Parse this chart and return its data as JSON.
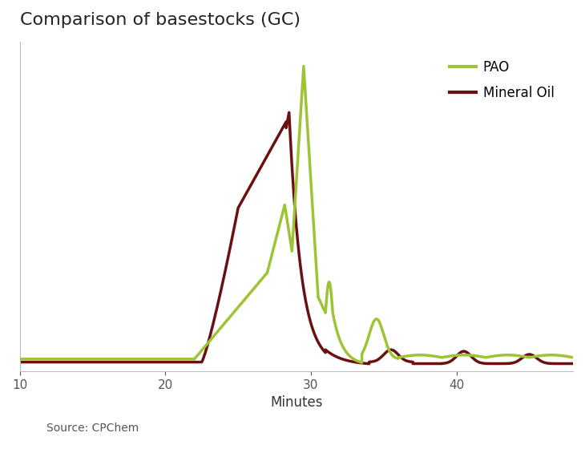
{
  "title": "Comparison of basestocks (GC)",
  "xlabel": "Minutes",
  "pao_color": "#9dc434",
  "mineral_color": "#6b1010",
  "legend_labels": [
    "PAO",
    "Mineral Oil"
  ],
  "source_text": "Source: CPChem",
  "xlim": [
    10,
    48
  ],
  "ylim": [
    -0.02,
    1.05
  ],
  "x_ticks": [
    10,
    20,
    30,
    40
  ],
  "background_color": "#ffffff",
  "linewidth": 2.5
}
